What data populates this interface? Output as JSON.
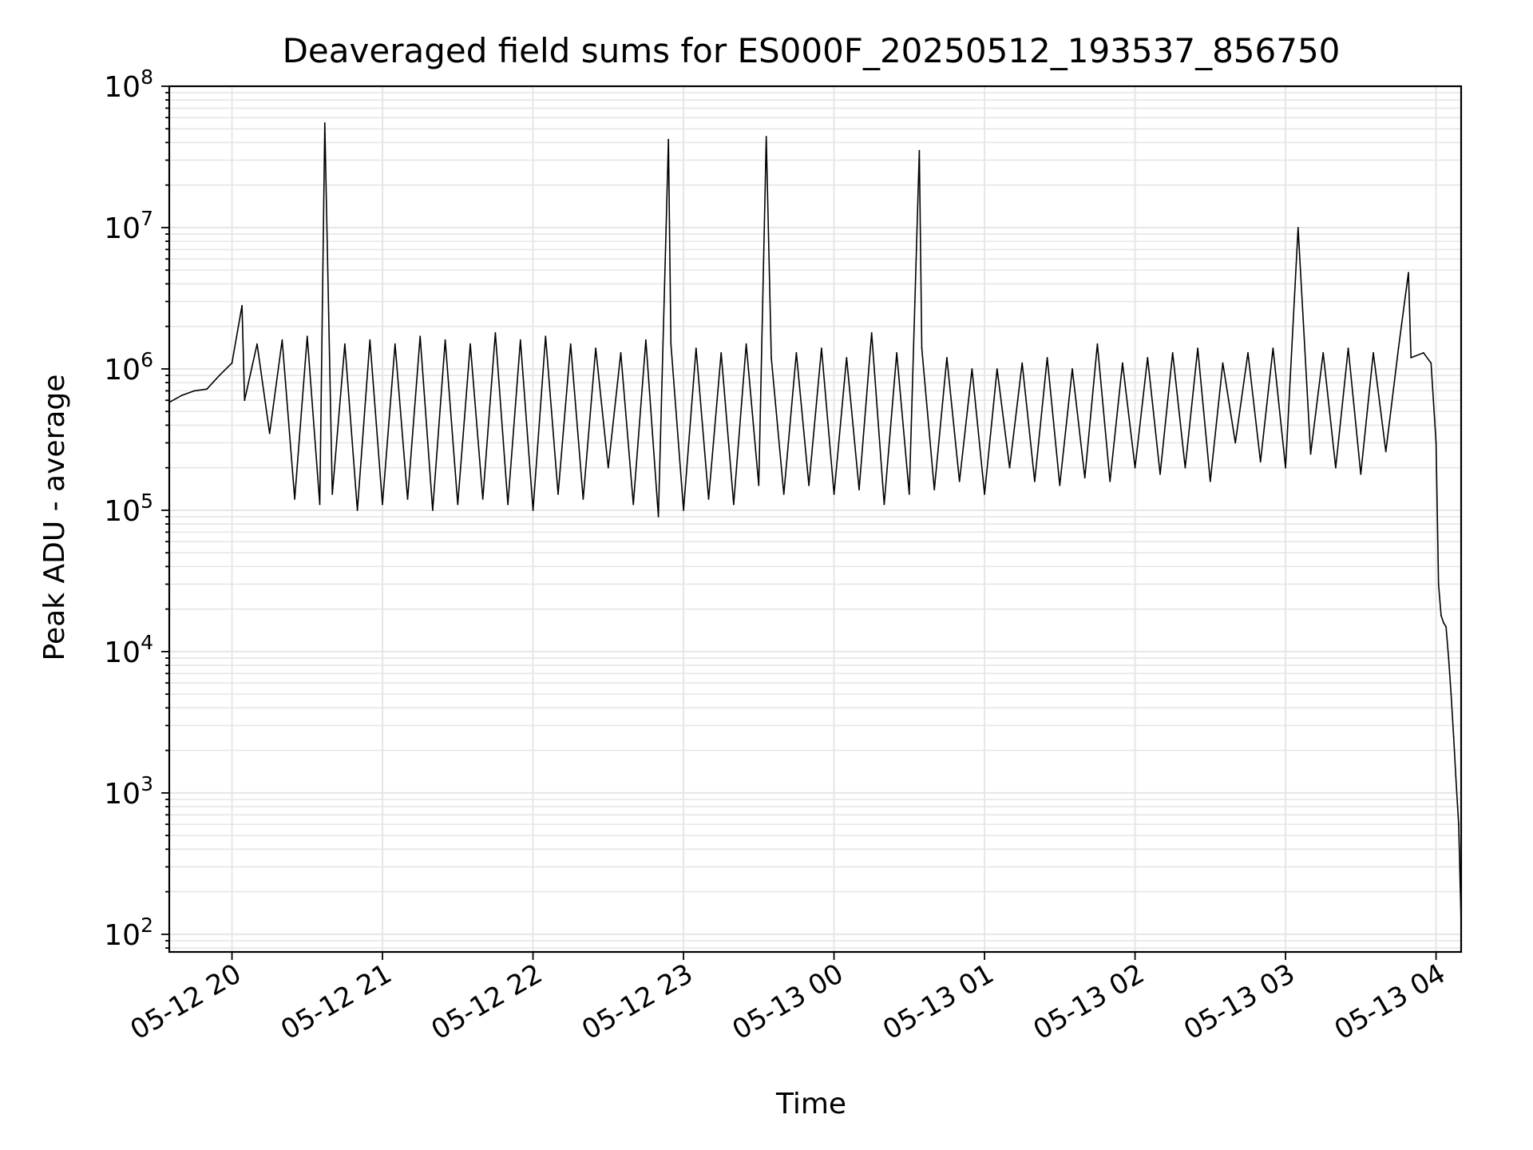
{
  "chart_data": {
    "type": "line",
    "title": "Deaveraged field sums for ES000F_20250512_193537_856750",
    "xlabel": "Time",
    "ylabel": "Peak ADU - average",
    "yscale": "log",
    "xlim": [
      "2025-05-12 19:35",
      "2025-05-13 04:10"
    ],
    "ylim": [
      75,
      100000000
    ],
    "grid": true,
    "colors": {
      "line": "#000000",
      "grid": "#e6e6e6",
      "axes": "#000000"
    },
    "x_ticks": [
      {
        "label": "05-12 20",
        "t": "2025-05-12 20:00"
      },
      {
        "label": "05-12 21",
        "t": "2025-05-12 21:00"
      },
      {
        "label": "05-12 22",
        "t": "2025-05-12 22:00"
      },
      {
        "label": "05-12 23",
        "t": "2025-05-12 23:00"
      },
      {
        "label": "05-13 00",
        "t": "2025-05-13 00:00"
      },
      {
        "label": "05-13 01",
        "t": "2025-05-13 01:00"
      },
      {
        "label": "05-13 02",
        "t": "2025-05-13 02:00"
      },
      {
        "label": "05-13 03",
        "t": "2025-05-13 03:00"
      },
      {
        "label": "05-13 04",
        "t": "2025-05-13 04:00"
      }
    ],
    "y_ticks": [
      {
        "base": "10",
        "exp": "2",
        "value": 100
      },
      {
        "base": "10",
        "exp": "3",
        "value": 1000
      },
      {
        "base": "10",
        "exp": "4",
        "value": 10000
      },
      {
        "base": "10",
        "exp": "5",
        "value": 100000
      },
      {
        "base": "10",
        "exp": "6",
        "value": 1000000
      },
      {
        "base": "10",
        "exp": "7",
        "value": 10000000
      },
      {
        "base": "10",
        "exp": "8",
        "value": 100000000
      }
    ],
    "series": [
      {
        "x": [
          "2025-05-12 19:35",
          "2025-05-12 19:40",
          "2025-05-12 19:45",
          "2025-05-12 19:50",
          "2025-05-12 19:55",
          "2025-05-12 20:00",
          "2025-05-12 20:04",
          "2025-05-12 20:05",
          "2025-05-12 20:10",
          "2025-05-12 20:15",
          "2025-05-12 20:20",
          "2025-05-12 20:25",
          "2025-05-12 20:30",
          "2025-05-12 20:35",
          "2025-05-12 20:37",
          "2025-05-12 20:40",
          "2025-05-12 20:45",
          "2025-05-12 20:50",
          "2025-05-12 20:55",
          "2025-05-12 21:00",
          "2025-05-12 21:05",
          "2025-05-12 21:10",
          "2025-05-12 21:15",
          "2025-05-12 21:20",
          "2025-05-12 21:25",
          "2025-05-12 21:30",
          "2025-05-12 21:35",
          "2025-05-12 21:40",
          "2025-05-12 21:45",
          "2025-05-12 21:50",
          "2025-05-12 21:55",
          "2025-05-12 22:00",
          "2025-05-12 22:05",
          "2025-05-12 22:10",
          "2025-05-12 22:15",
          "2025-05-12 22:20",
          "2025-05-12 22:25",
          "2025-05-12 22:30",
          "2025-05-12 22:35",
          "2025-05-12 22:40",
          "2025-05-12 22:45",
          "2025-05-12 22:50",
          "2025-05-12 22:54",
          "2025-05-12 22:55",
          "2025-05-12 23:00",
          "2025-05-12 23:05",
          "2025-05-12 23:10",
          "2025-05-12 23:15",
          "2025-05-12 23:20",
          "2025-05-12 23:25",
          "2025-05-12 23:30",
          "2025-05-12 23:33",
          "2025-05-12 23:35",
          "2025-05-12 23:40",
          "2025-05-12 23:45",
          "2025-05-12 23:50",
          "2025-05-12 23:55",
          "2025-05-13 00:00",
          "2025-05-13 00:05",
          "2025-05-13 00:10",
          "2025-05-13 00:15",
          "2025-05-13 00:20",
          "2025-05-13 00:25",
          "2025-05-13 00:30",
          "2025-05-13 00:34",
          "2025-05-13 00:35",
          "2025-05-13 00:40",
          "2025-05-13 00:45",
          "2025-05-13 00:50",
          "2025-05-13 00:55",
          "2025-05-13 01:00",
          "2025-05-13 01:05",
          "2025-05-13 01:10",
          "2025-05-13 01:15",
          "2025-05-13 01:20",
          "2025-05-13 01:25",
          "2025-05-13 01:30",
          "2025-05-13 01:35",
          "2025-05-13 01:40",
          "2025-05-13 01:45",
          "2025-05-13 01:50",
          "2025-05-13 01:55",
          "2025-05-13 02:00",
          "2025-05-13 02:05",
          "2025-05-13 02:10",
          "2025-05-13 02:15",
          "2025-05-13 02:20",
          "2025-05-13 02:25",
          "2025-05-13 02:30",
          "2025-05-13 02:35",
          "2025-05-13 02:40",
          "2025-05-13 02:45",
          "2025-05-13 02:50",
          "2025-05-13 02:55",
          "2025-05-13 03:00",
          "2025-05-13 03:05",
          "2025-05-13 03:10",
          "2025-05-13 03:15",
          "2025-05-13 03:20",
          "2025-05-13 03:25",
          "2025-05-13 03:30",
          "2025-05-13 03:35",
          "2025-05-13 03:40",
          "2025-05-13 03:45",
          "2025-05-13 03:49",
          "2025-05-13 03:50",
          "2025-05-13 03:55",
          "2025-05-13 03:58",
          "2025-05-13 04:00",
          "2025-05-13 04:01",
          "2025-05-13 04:02",
          "2025-05-13 04:03",
          "2025-05-13 04:04",
          "2025-05-13 04:05",
          "2025-05-13 04:06",
          "2025-05-13 04:07",
          "2025-05-13 04:08",
          "2025-05-13 04:09",
          "2025-05-13 04:10"
        ],
        "y": [
          580000,
          650000,
          700000,
          720000,
          900000,
          1100000,
          2800000,
          600000,
          1500000,
          350000,
          1600000,
          120000,
          1700000,
          110000,
          55000000,
          130000,
          1500000,
          100000,
          1600000,
          110000,
          1500000,
          120000,
          1700000,
          100000,
          1600000,
          110000,
          1500000,
          120000,
          1800000,
          110000,
          1600000,
          100000,
          1700000,
          130000,
          1500000,
          120000,
          1400000,
          200000,
          1300000,
          110000,
          1600000,
          90000,
          42000000,
          1500000,
          100000,
          1400000,
          120000,
          1300000,
          110000,
          1500000,
          150000,
          44000000,
          1200000,
          130000,
          1300000,
          150000,
          1400000,
          130000,
          1200000,
          140000,
          1800000,
          110000,
          1300000,
          130000,
          35000000,
          1400000,
          140000,
          1200000,
          160000,
          1000000,
          130000,
          1000000,
          200000,
          1100000,
          160000,
          1200000,
          150000,
          1000000,
          170000,
          1500000,
          160000,
          1100000,
          200000,
          1200000,
          180000,
          1300000,
          200000,
          1400000,
          160000,
          1100000,
          300000,
          1300000,
          220000,
          1400000,
          200000,
          10000000,
          250000,
          1300000,
          200000,
          1400000,
          180000,
          1300000,
          260000,
          1400000,
          4800000,
          1200000,
          1300000,
          1100000,
          300000,
          30000,
          18000,
          16000,
          15000,
          9000,
          5000,
          2500,
          1200,
          600,
          120
        ]
      }
    ]
  }
}
